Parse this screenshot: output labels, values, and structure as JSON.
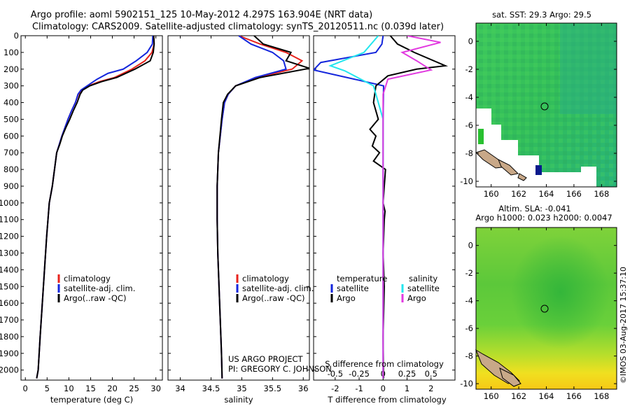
{
  "title": {
    "line1": "Argo profile: aoml 5902151_125 10-May-2012 4.297S 163.904E (NRT data)",
    "line2": "Climatology: CARS2009. Satellite-adjusted climatology: synTS_20120511.nc (0.039d later)"
  },
  "colors": {
    "climatology": "#e8231c",
    "satellite": "#1426dc",
    "argo": "#000000",
    "sal_satellite": "#22e6ee",
    "sal_argo": "#e23ae0"
  },
  "credit": {
    "line1": "US ARGO PROJECT",
    "line2": "PI: GREGORY C. JOHNSON"
  },
  "timestamp": "©IMOS 03-Aug-2017 15:37:10",
  "chart_data": [
    {
      "type": "line",
      "name": "temperature",
      "xlabel": "temperature (deg C)",
      "xlim": [
        -1,
        31.5
      ],
      "ylim": [
        2060,
        0
      ],
      "xticks": [
        0,
        5,
        10,
        15,
        20,
        25,
        30
      ],
      "yticks": [
        0,
        100,
        200,
        300,
        400,
        500,
        600,
        700,
        800,
        900,
        1000,
        1100,
        1200,
        1300,
        1400,
        1500,
        1600,
        1700,
        1800,
        1900,
        2000
      ],
      "legend": [
        "climatology",
        "satellite-adj. clim.",
        "Argo(..raw -QC)"
      ],
      "series": [
        {
          "name": "climatology",
          "color": "#e8231c",
          "x": [
            29.5,
            29.6,
            29.1,
            27.5,
            24.5,
            20.5,
            17,
            14.5,
            13,
            12.2,
            11.5,
            10.6,
            9.8,
            9.1,
            8.4,
            7.8,
            7.2,
            6.7,
            6.2,
            5.5,
            4.9,
            4.4,
            3.9,
            3.4,
            2.95,
            2.6
          ],
          "y": [
            0,
            50,
            100,
            150,
            200,
            250,
            275,
            300,
            325,
            350,
            400,
            450,
            500,
            550,
            600,
            650,
            700,
            800,
            900,
            1000,
            1200,
            1400,
            1600,
            1800,
            2000,
            2050
          ]
        },
        {
          "name": "satellite-adj. clim.",
          "color": "#1426dc",
          "x": [
            29.3,
            29.2,
            28,
            25.5,
            22.5,
            19,
            16.5,
            14.2,
            12.8,
            12.1,
            11.5,
            10.6,
            9.8,
            9.1,
            8.4,
            7.8,
            7.2,
            6.7,
            6.2,
            5.5,
            4.9,
            4.4,
            3.9,
            3.4,
            2.95,
            2.6
          ],
          "y": [
            0,
            50,
            100,
            150,
            200,
            225,
            260,
            300,
            325,
            350,
            400,
            450,
            500,
            550,
            600,
            650,
            700,
            800,
            900,
            1000,
            1200,
            1400,
            1600,
            1800,
            2000,
            2050
          ]
        },
        {
          "name": "Argo(..raw -QC)",
          "color": "#000000",
          "x": [
            29.5,
            29.6,
            29.4,
            28.7,
            25.2,
            21,
            17.5,
            14.8,
            13.2,
            12.6,
            11.9,
            11,
            10.2,
            9.3,
            8.5,
            7.9,
            7.2,
            6.7,
            6.2,
            5.5,
            4.9,
            4.4,
            3.9,
            3.4,
            2.95,
            2.6
          ],
          "y": [
            0,
            50,
            100,
            150,
            200,
            250,
            275,
            300,
            325,
            350,
            400,
            450,
            500,
            550,
            600,
            650,
            700,
            800,
            900,
            1000,
            1200,
            1400,
            1600,
            1800,
            2000,
            2050
          ]
        }
      ]
    },
    {
      "type": "line",
      "name": "salinity",
      "xlabel": "salinity",
      "xlim": [
        33.8,
        36.1
      ],
      "ylim": [
        2060,
        0
      ],
      "xticks": [
        34,
        34.5,
        35,
        35.5,
        36
      ],
      "legend": [
        "climatology",
        "satellite-adj. clim.",
        "Argo(..raw -QC)"
      ],
      "series": [
        {
          "name": "climatology",
          "color": "#e8231c",
          "x": [
            34.95,
            35.3,
            35.72,
            35.98,
            35.82,
            35.25,
            34.9,
            34.78,
            34.72,
            34.68,
            34.62,
            34.6,
            34.6,
            34.61,
            34.63,
            34.65,
            34.67,
            34.68
          ],
          "y": [
            0,
            50,
            100,
            150,
            200,
            250,
            300,
            350,
            400,
            500,
            700,
            900,
            1100,
            1300,
            1500,
            1700,
            1900,
            2050
          ]
        },
        {
          "name": "satellite-adj. clim.",
          "color": "#1426dc",
          "x": [
            34.95,
            35.15,
            35.5,
            35.68,
            35.72,
            35.22,
            34.9,
            34.78,
            34.72,
            34.68,
            34.62,
            34.6,
            34.6,
            34.61,
            34.63,
            34.65,
            34.67,
            34.68
          ],
          "y": [
            0,
            50,
            100,
            150,
            200,
            250,
            300,
            350,
            400,
            500,
            700,
            900,
            1100,
            1300,
            1500,
            1700,
            1900,
            2050
          ]
        },
        {
          "name": "Argo(..raw -QC)",
          "color": "#000000",
          "x": [
            35.2,
            35.35,
            35.8,
            35.72,
            36.1,
            35.3,
            34.9,
            34.77,
            34.7,
            34.67,
            34.62,
            34.6,
            34.6,
            34.61,
            34.63,
            34.65,
            34.67,
            34.68
          ],
          "y": [
            0,
            50,
            100,
            150,
            195,
            250,
            300,
            350,
            400,
            500,
            700,
            900,
            1100,
            1300,
            1500,
            1700,
            1900,
            2050
          ]
        }
      ]
    },
    {
      "type": "line",
      "name": "difference from climatology",
      "xlabel_t": "T difference from climatology",
      "xlabel_s": "S difference from climatology",
      "xlim_t": [
        -2.9,
        3.0
      ],
      "xticks_t": [
        -2,
        -1,
        0,
        1,
        2
      ],
      "xticks_s": [
        -0.5,
        -0.25,
        0,
        0.25,
        0.5
      ],
      "ylim": [
        2060,
        0
      ],
      "legend_titles": [
        "temperature",
        "salinity"
      ],
      "legend": [
        "satellite",
        "Argo",
        "satellite",
        "Argo"
      ],
      "series": [
        {
          "name": "temperature satellite",
          "color": "#1426dc",
          "x": [
            0,
            -0.05,
            -0.3,
            -2.6,
            -2.9,
            -1.2,
            0.02,
            0,
            0,
            0
          ],
          "y": [
            0,
            50,
            100,
            160,
            205,
            260,
            300,
            500,
            1000,
            2050
          ]
        },
        {
          "name": "temperature Argo",
          "color": "#000000",
          "x": [
            0.3,
            0.6,
            1.3,
            2.6,
            1.4,
            0.2,
            -0.3,
            -0.4,
            -0.2,
            -0.55,
            -0.3,
            -0.45,
            -0.15,
            -0.4,
            0.1,
            0.05,
            0,
            0.08,
            0.05,
            0,
            0.05,
            0,
            0.02
          ],
          "y": [
            0,
            50,
            100,
            180,
            200,
            240,
            300,
            400,
            500,
            560,
            600,
            660,
            700,
            750,
            800,
            900,
            1000,
            1050,
            1100,
            1300,
            1500,
            1800,
            2050
          ]
        },
        {
          "name": "salinity satellite (S units)",
          "color": "#22e6ee",
          "x": [
            -0.05,
            -0.2,
            -0.55,
            -0.4,
            -0.1,
            0,
            0,
            0
          ],
          "y": [
            0,
            100,
            180,
            210,
            300,
            500,
            1000,
            2050
          ]
        },
        {
          "name": "salinity Argo (S units)",
          "color": "#e23ae0",
          "x": [
            0.25,
            0.6,
            0.2,
            0.35,
            0.5,
            0.05,
            0,
            0,
            0
          ],
          "y": [
            0,
            40,
            100,
            150,
            205,
            260,
            350,
            1000,
            2050
          ]
        }
      ]
    },
    {
      "type": "heatmap",
      "name": "sat SST",
      "title": "sat. SST: 29.3 Argo: 29.5",
      "xticks": [
        160,
        162,
        164,
        166,
        168
      ],
      "yticks": [
        0,
        -2,
        -4,
        -6,
        -8,
        -10
      ],
      "xlim": [
        158.9,
        169.1
      ],
      "ylim": [
        -10.4,
        1.3
      ],
      "marker": {
        "lon": 163.904,
        "lat": -4.297
      }
    },
    {
      "type": "heatmap",
      "name": "Altim SLA",
      "title_line1": "Altim. SLA: -0.041",
      "title_line2": "Argo h1000: 0.023 h2000: 0.0047",
      "xticks": [
        160,
        162,
        164,
        166,
        168
      ],
      "yticks": [
        0,
        -2,
        -4,
        -6,
        -8,
        -10
      ],
      "xlim": [
        158.9,
        169.1
      ],
      "ylim": [
        -10.4,
        1.3
      ],
      "marker": {
        "lon": 163.904,
        "lat": -4.297
      }
    }
  ]
}
